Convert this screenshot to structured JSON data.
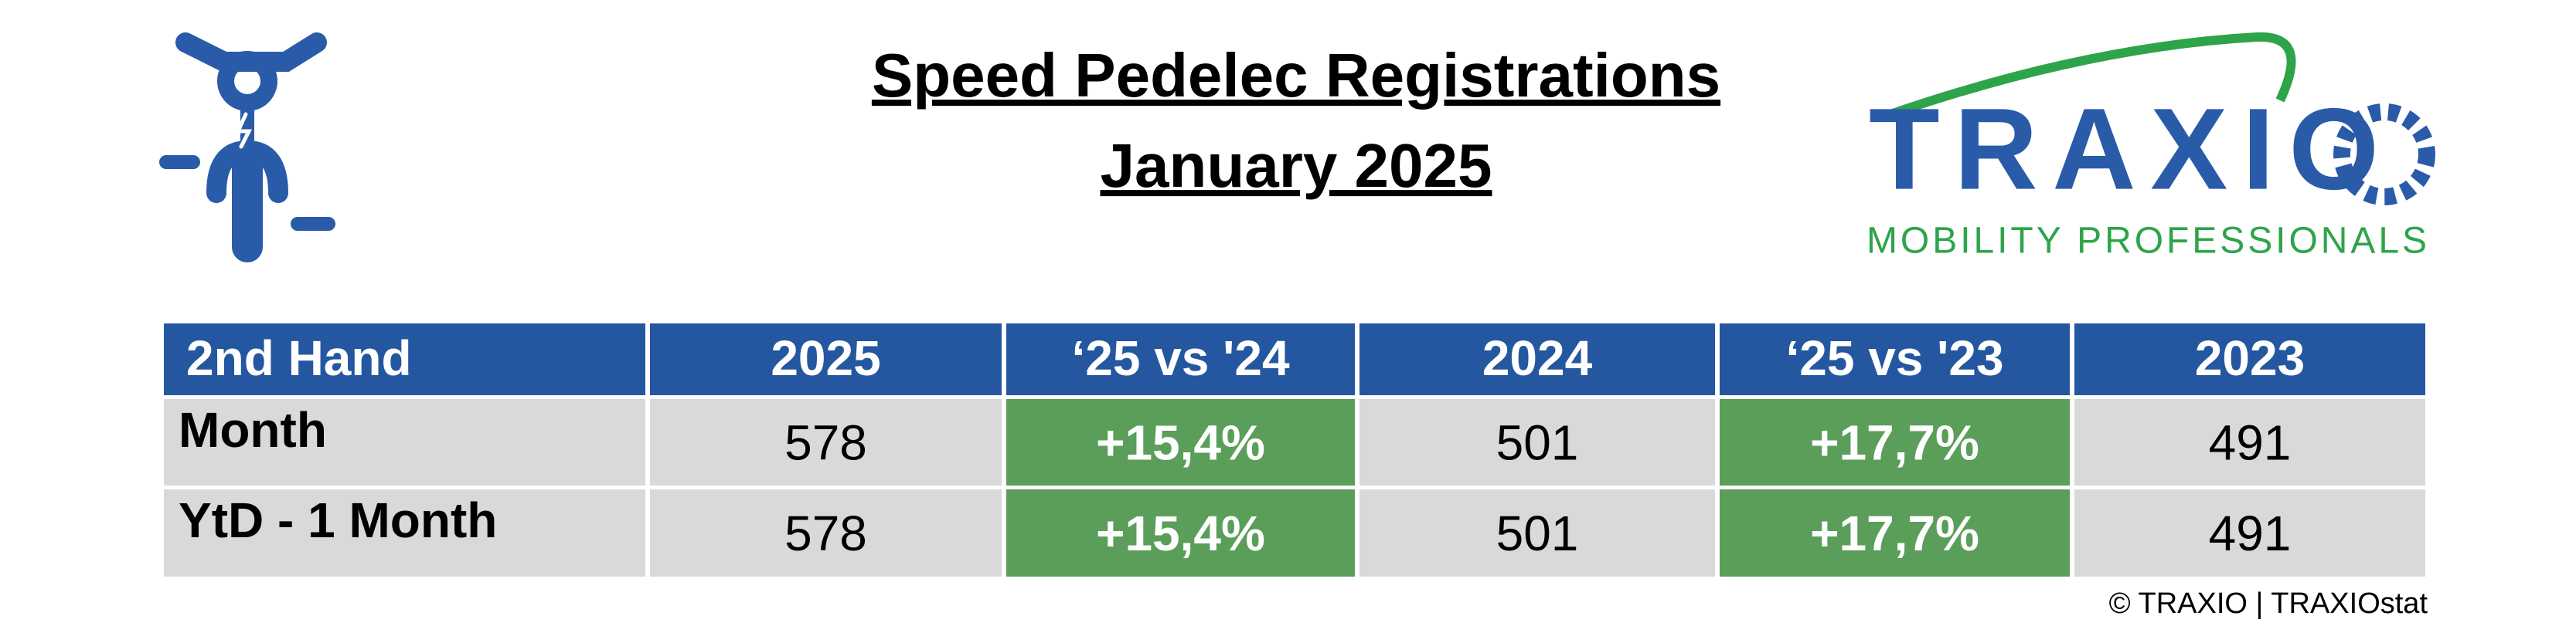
{
  "header": {
    "title_line1": "Speed Pedelec Registrations",
    "title_line2": "January 2025"
  },
  "logo": {
    "name": "TRAXIO",
    "tagline": "MOBILITY PROFESSIONALS"
  },
  "table": {
    "columns": [
      "2nd Hand",
      "2025",
      "‘25 vs '24",
      "2024",
      "‘25 vs '23",
      "2023"
    ],
    "rows": [
      [
        "Month",
        "578",
        "+15,4%",
        "501",
        "+17,7%",
        "491"
      ],
      [
        "YtD - 1 Month",
        "578",
        "+15,4%",
        "501",
        "+17,7%",
        "491"
      ]
    ]
  },
  "footer": "© TRAXIO | TRAXIOstat"
}
